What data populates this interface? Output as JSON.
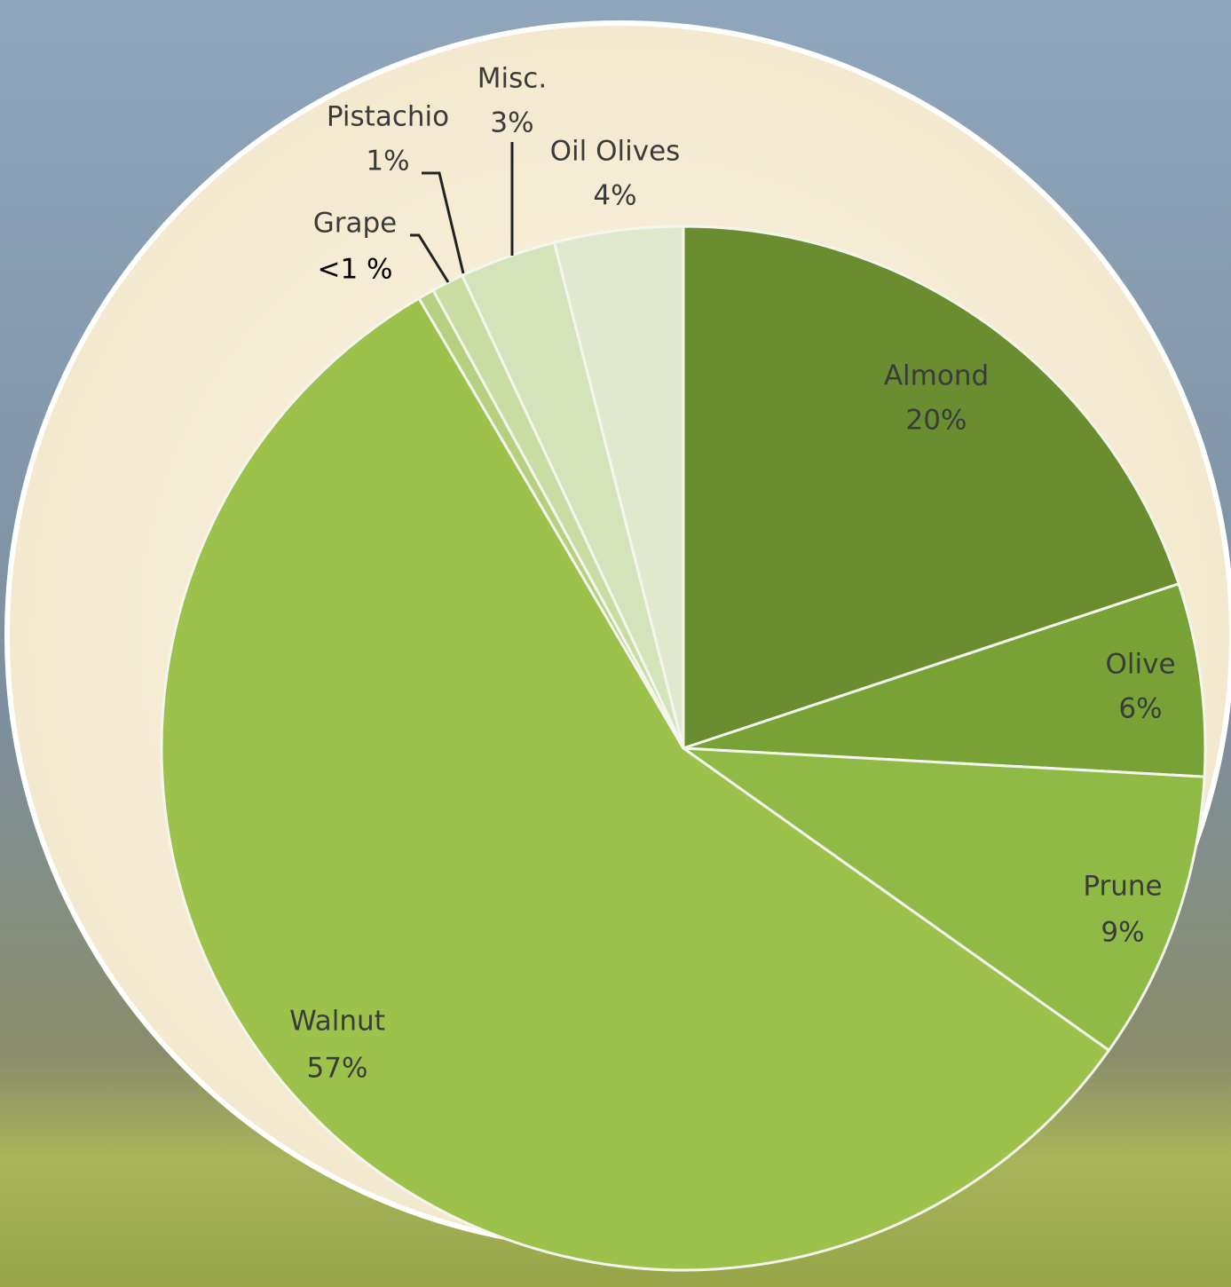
{
  "chart_data": {
    "type": "pie",
    "categories": [
      "Almond",
      "Olive",
      "Prune",
      "Walnut",
      "Grape",
      "Pistachio",
      "Misc.",
      "Oil Olives"
    ],
    "values": [
      20,
      6,
      9,
      57,
      0.5,
      1,
      3,
      4
    ],
    "value_labels": [
      "20%",
      "6%",
      "9%",
      "57%",
      "<1 %",
      "1%",
      "3%",
      "4%"
    ],
    "colors": [
      "#6a8d30",
      "#78a236",
      "#8fba46",
      "#9cc24c",
      "#b7d080",
      "#c9dca2",
      "#d5e3bb",
      "#e0e8cd"
    ]
  }
}
